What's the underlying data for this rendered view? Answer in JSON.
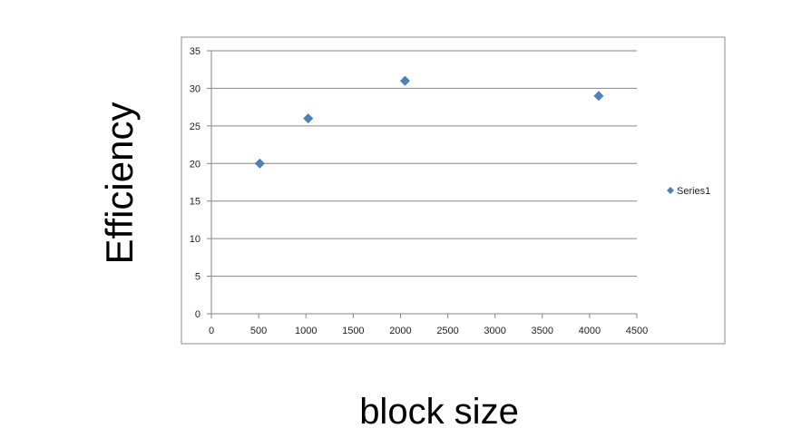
{
  "chart_data": {
    "type": "scatter",
    "title": "",
    "xlabel": "block size",
    "ylabel": "Efficiency",
    "xlim": [
      0,
      4500
    ],
    "ylim": [
      0,
      35
    ],
    "xticks": [
      0,
      500,
      1000,
      1500,
      2000,
      2500,
      3000,
      3500,
      4000,
      4500
    ],
    "yticks": [
      0,
      5,
      10,
      15,
      20,
      25,
      30,
      35
    ],
    "grid": "horizontal",
    "legend_position": "right",
    "series": [
      {
        "name": "Series1",
        "color": "#4F81BD",
        "marker": "diamond",
        "x": [
          512,
          1024,
          2048,
          4096
        ],
        "y": [
          20,
          26,
          31,
          29
        ]
      }
    ]
  }
}
